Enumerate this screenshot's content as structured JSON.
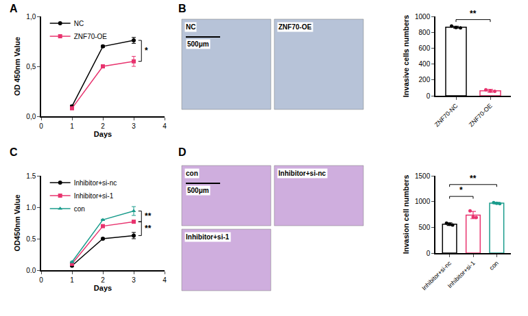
{
  "chart_data": [
    {
      "panel": "A",
      "type": "line",
      "xlabel": "Days",
      "ylabel": "OD 450nm Value",
      "x": [
        1,
        2,
        3
      ],
      "xlim": [
        0,
        4
      ],
      "xticks": [
        0,
        1,
        2,
        3,
        4
      ],
      "ylim": [
        0,
        1.0
      ],
      "yticks": [
        {
          "value": 0,
          "label": "0,0"
        },
        {
          "value": 0.5,
          "label": "0,5"
        },
        {
          "value": 1.0,
          "label": "1,0"
        }
      ],
      "grid": false,
      "legend": "top left",
      "series": [
        {
          "name": "NC",
          "color": "#000000",
          "marker": "circle",
          "values": [
            0.1,
            0.7,
            0.76
          ],
          "error": [
            0.01,
            0.01,
            0.03
          ]
        },
        {
          "name": "ZNF70-OE",
          "color": "#e8336e",
          "marker": "square",
          "values": [
            0.08,
            0.5,
            0.55
          ],
          "error": [
            0.01,
            0.01,
            0.05
          ]
        }
      ],
      "annotations": [
        {
          "text": "*",
          "x": 3,
          "between": [
            "NC",
            "ZNF70-OE"
          ]
        }
      ]
    },
    {
      "panel": "B",
      "type": "bar",
      "ylabel": "Invasive cells numbers",
      "categories": [
        "ZNF70-NC",
        "ZNF70-OE"
      ],
      "values": [
        865,
        63
      ],
      "error": [
        12,
        18
      ],
      "points": [
        [
          880,
          860,
          855
        ],
        [
          75,
          60,
          55
        ]
      ],
      "colors": [
        "#000000",
        "#e8336e"
      ],
      "ylim": [
        0,
        1000
      ],
      "yticks": [
        0,
        200,
        400,
        600,
        800,
        1000
      ],
      "grid": false,
      "annotations": [
        {
          "text": "**",
          "y": 960,
          "between": [
            "ZNF70-NC",
            "ZNF70-OE"
          ]
        }
      ]
    },
    {
      "panel": "C",
      "type": "line",
      "xlabel": "Days",
      "ylabel": "OD450nm Value",
      "x": [
        1,
        2,
        3
      ],
      "xlim": [
        0,
        4
      ],
      "xticks": [
        0,
        1,
        2,
        3,
        4
      ],
      "ylim": [
        0,
        1.5
      ],
      "yticks": [
        {
          "value": 0,
          "label": "0.0"
        },
        0.5,
        {
          "value": 1.0,
          "label": "1.0"
        },
        1.5
      ],
      "grid": false,
      "legend": "top left",
      "series": [
        {
          "name": "Inhibitor+si-nc",
          "color": "#000000",
          "marker": "circle",
          "values": [
            0.07,
            0.5,
            0.55
          ],
          "error": [
            0.01,
            0.01,
            0.05
          ]
        },
        {
          "name": "Inhibitor+si-1",
          "color": "#e8336e",
          "marker": "square",
          "values": [
            0.1,
            0.7,
            0.77
          ],
          "error": [
            0.01,
            0.01,
            0.02
          ]
        },
        {
          "name": "con",
          "color": "#1a9c8c",
          "marker": "triangle-up",
          "values": [
            0.13,
            0.8,
            0.94
          ],
          "error": [
            0.01,
            0.01,
            0.07
          ]
        }
      ],
      "annotations": [
        {
          "text": "**",
          "x": 3,
          "between": [
            "con",
            "Inhibitor+si-1"
          ]
        },
        {
          "text": "**",
          "x": 3,
          "between": [
            "Inhibitor+si-1",
            "Inhibitor+si-nc"
          ]
        }
      ]
    },
    {
      "panel": "D",
      "type": "bar",
      "ylabel": "Invasion cell numbers",
      "categories": [
        "Inhibitor+si-nc",
        "Inhibitor+si-1",
        "con"
      ],
      "values": [
        562,
        737,
        968
      ],
      "error": [
        25,
        70,
        15
      ],
      "points": [
        [
          580,
          560,
          545
        ],
        [
          820,
          700,
          690
        ],
        [
          980,
          965,
          960
        ]
      ],
      "colors": [
        "#000000",
        "#e8336e",
        "#1a9c8c"
      ],
      "ylim": [
        0,
        1500
      ],
      "yticks": [
        0,
        500,
        1000,
        1500
      ],
      "grid": false,
      "annotations": [
        {
          "text": "*",
          "y": 1100,
          "between": [
            "Inhibitor+si-nc",
            "Inhibitor+si-1"
          ]
        },
        {
          "text": "**",
          "y": 1330,
          "between": [
            "Inhibitor+si-nc",
            "con"
          ]
        }
      ]
    }
  ],
  "images": [
    {
      "panel": "B",
      "label": "NC",
      "scale_bar": "500μm"
    },
    {
      "panel": "B",
      "label": "ZNF70-OE"
    },
    {
      "panel": "D",
      "label": "con",
      "scale_bar": "500μm"
    },
    {
      "panel": "D",
      "label": "Inhibitor+si-nc"
    },
    {
      "panel": "D",
      "label": "Inhibitor+si-1"
    }
  ]
}
